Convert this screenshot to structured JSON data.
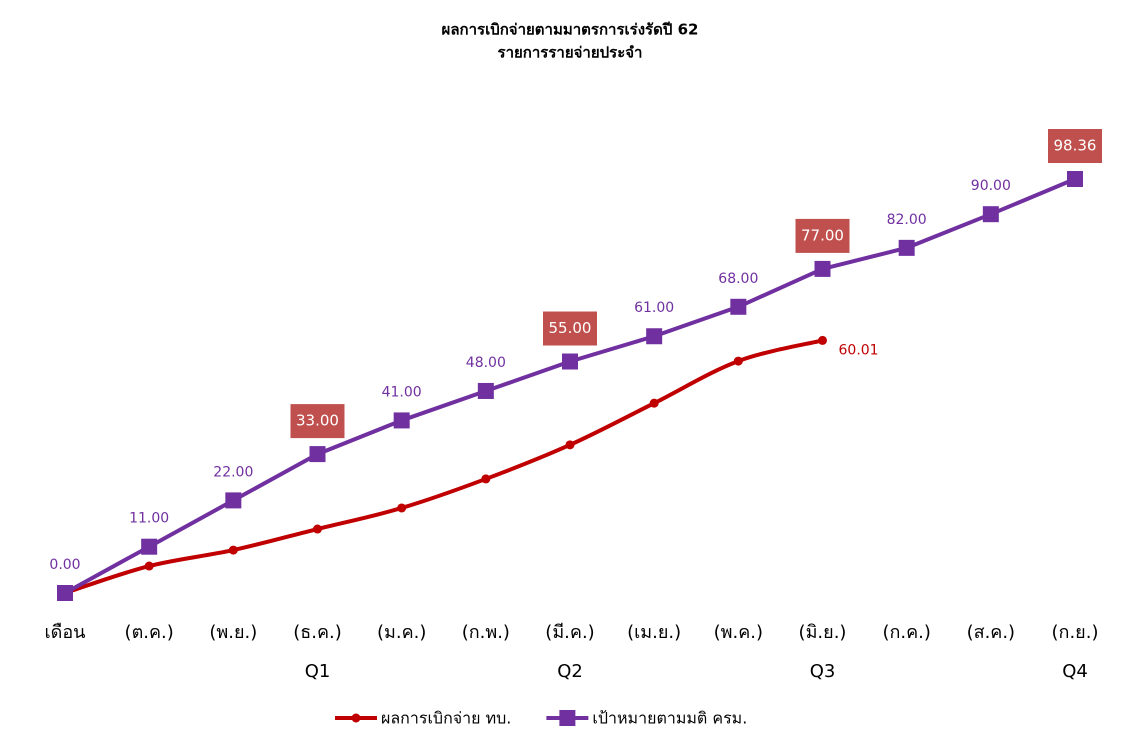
{
  "chart_data": {
    "type": "line",
    "title": "ผลการเบิกจ่ายตามมาตรการเร่งรัดปี 62",
    "subtitle": "รายการรายจ่ายประจำ",
    "categories": [
      "เดือน",
      "(ต.ค.)",
      "(พ.ย.)",
      "(ธ.ค.)",
      "(ม.ค.)",
      "(ก.พ.)",
      "(มี.ค.)",
      "(เม.ย.)",
      "(พ.ค.)",
      "(มิ.ย.)",
      "(ก.ค.)",
      "(ส.ค.)",
      "(ก.ย.)"
    ],
    "quarter_labels": [
      null,
      null,
      null,
      "Q1",
      null,
      null,
      "Q2",
      null,
      null,
      "Q3",
      null,
      null,
      "Q4"
    ],
    "legend": "bottom",
    "series": [
      {
        "name": "ผลการเบิกจ่าย ทบ.",
        "color": "#c00000",
        "marker": "circle",
        "smooth": true,
        "values": [
          0,
          6.4,
          10.2,
          15.2,
          20.2,
          27.1,
          35.2,
          45.1,
          55.1,
          60.01,
          null,
          null,
          null
        ],
        "value_labels": [
          null,
          null,
          null,
          null,
          null,
          null,
          null,
          null,
          null,
          "60.01",
          null,
          null,
          null
        ]
      },
      {
        "name": "เป้าหมายตามมติ ครม.",
        "color": "#7030a0",
        "marker": "square",
        "smooth": false,
        "values": [
          0,
          11,
          22,
          33,
          41,
          48,
          55,
          61,
          68,
          77,
          82,
          90,
          98.36
        ],
        "value_labels": [
          "0.00",
          "11.00",
          "22.00",
          "33.00",
          "41.00",
          "48.00",
          "55.00",
          "61.00",
          "68.00",
          "77.00",
          "82.00",
          "90.00",
          "98.36"
        ],
        "boxed_labels": [
          3,
          6,
          9,
          12
        ],
        "box_color": "#c0504d"
      }
    ]
  }
}
